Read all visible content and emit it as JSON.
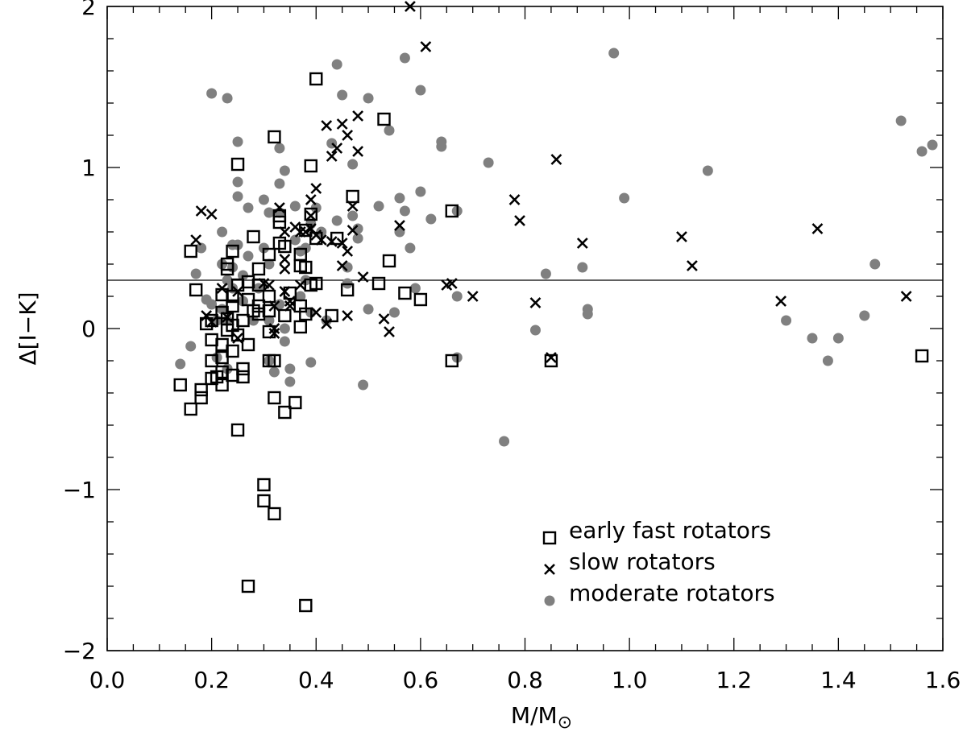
{
  "chart_data": {
    "type": "scatter",
    "xlabel": "M/M",
    "xlabel_symbol": "⊙",
    "ylabel": "Δ[I−K]",
    "xlim": [
      0.0,
      1.6
    ],
    "ylim": [
      -2.0,
      2.0
    ],
    "x_ticks": [
      "0.0",
      "0.2",
      "0.4",
      "0.6",
      "0.8",
      "1.0",
      "1.2",
      "1.4",
      "1.6"
    ],
    "y_ticks": [
      "2",
      "1",
      "0",
      "−1",
      "−2"
    ],
    "reference_line_y": 0.3,
    "legend_position": "bottom-right",
    "colors": {
      "early": "#000000",
      "slow": "#000000",
      "moderate": "#808080"
    },
    "series": [
      {
        "name": "early fast rotators",
        "marker": "square",
        "points": [
          [
            0.14,
            -0.35
          ],
          [
            0.16,
            -0.5
          ],
          [
            0.16,
            0.48
          ],
          [
            0.17,
            0.24
          ],
          [
            0.18,
            -0.43
          ],
          [
            0.18,
            -0.38
          ],
          [
            0.19,
            0.03
          ],
          [
            0.2,
            0.05
          ],
          [
            0.2,
            -0.07
          ],
          [
            0.2,
            -0.2
          ],
          [
            0.2,
            -0.31
          ],
          [
            0.21,
            -0.3
          ],
          [
            0.22,
            0.21
          ],
          [
            0.22,
            0.1
          ],
          [
            0.22,
            -0.1
          ],
          [
            0.22,
            -0.18
          ],
          [
            0.22,
            -0.27
          ],
          [
            0.22,
            -0.35
          ],
          [
            0.23,
            0.37
          ],
          [
            0.23,
            0.4
          ],
          [
            0.23,
            0.06
          ],
          [
            0.23,
            -0.01
          ],
          [
            0.24,
            0.48
          ],
          [
            0.24,
            0.2
          ],
          [
            0.24,
            0.14
          ],
          [
            0.24,
            0.02
          ],
          [
            0.24,
            -0.14
          ],
          [
            0.24,
            -0.29
          ],
          [
            0.25,
            1.02
          ],
          [
            0.25,
            0.27
          ],
          [
            0.25,
            -0.04
          ],
          [
            0.25,
            -0.63
          ],
          [
            0.26,
            0.05
          ],
          [
            0.26,
            -0.25
          ],
          [
            0.26,
            -0.3
          ],
          [
            0.27,
            0.29
          ],
          [
            0.27,
            0.18
          ],
          [
            0.27,
            -0.1
          ],
          [
            0.28,
            0.57
          ],
          [
            0.28,
            0.11
          ],
          [
            0.29,
            0.37
          ],
          [
            0.29,
            0.27
          ],
          [
            0.29,
            0.14
          ],
          [
            0.29,
            0.09
          ],
          [
            0.3,
            -0.97
          ],
          [
            0.3,
            -1.07
          ],
          [
            0.31,
            0.46
          ],
          [
            0.31,
            0.2
          ],
          [
            0.31,
            0.11
          ],
          [
            0.31,
            -0.02
          ],
          [
            0.31,
            -0.2
          ],
          [
            0.32,
            -0.2
          ],
          [
            0.32,
            1.19
          ],
          [
            0.32,
            -0.43
          ],
          [
            0.32,
            -1.15
          ],
          [
            0.33,
            0.7
          ],
          [
            0.33,
            0.66
          ],
          [
            0.33,
            0.53
          ],
          [
            0.34,
            0.51
          ],
          [
            0.34,
            0.08
          ],
          [
            0.34,
            -0.52
          ],
          [
            0.35,
            0.22
          ],
          [
            0.36,
            -0.46
          ],
          [
            0.37,
            0.46
          ],
          [
            0.37,
            0.39
          ],
          [
            0.37,
            0.14
          ],
          [
            0.37,
            0.01
          ],
          [
            0.38,
            0.61
          ],
          [
            0.38,
            0.38
          ],
          [
            0.38,
            0.09
          ],
          [
            0.39,
            1.01
          ],
          [
            0.39,
            0.71
          ],
          [
            0.39,
            0.27
          ],
          [
            0.4,
            1.55
          ],
          [
            0.4,
            0.56
          ],
          [
            0.4,
            0.28
          ],
          [
            0.43,
            0.08
          ],
          [
            0.44,
            0.56
          ],
          [
            0.46,
            0.24
          ],
          [
            0.47,
            0.82
          ],
          [
            0.52,
            0.28
          ],
          [
            0.53,
            1.3
          ],
          [
            0.54,
            0.42
          ],
          [
            0.57,
            0.22
          ],
          [
            0.6,
            0.18
          ],
          [
            0.66,
            0.73
          ],
          [
            0.66,
            -0.2
          ],
          [
            0.85,
            -0.2
          ],
          [
            1.56,
            -0.17
          ],
          [
            0.27,
            -1.6
          ],
          [
            0.38,
            -1.72
          ]
        ]
      },
      {
        "name": "slow rotators",
        "marker": "x",
        "points": [
          [
            0.18,
            0.73
          ],
          [
            0.17,
            0.55
          ],
          [
            0.2,
            0.71
          ],
          [
            0.19,
            0.08
          ],
          [
            0.2,
            0.04
          ],
          [
            0.22,
            0.25
          ],
          [
            0.23,
            0.07
          ],
          [
            0.25,
            0.23
          ],
          [
            0.25,
            -0.06
          ],
          [
            0.3,
            0.28
          ],
          [
            0.31,
            0.27
          ],
          [
            0.32,
            0.14
          ],
          [
            0.32,
            0.0
          ],
          [
            0.32,
            -0.03
          ],
          [
            0.33,
            0.75
          ],
          [
            0.34,
            0.6
          ],
          [
            0.34,
            0.43
          ],
          [
            0.34,
            0.37
          ],
          [
            0.34,
            0.23
          ],
          [
            0.35,
            0.17
          ],
          [
            0.35,
            0.14
          ],
          [
            0.36,
            0.63
          ],
          [
            0.37,
            0.6
          ],
          [
            0.37,
            0.27
          ],
          [
            0.38,
            0.6
          ],
          [
            0.39,
            0.7
          ],
          [
            0.39,
            0.62
          ],
          [
            0.39,
            0.8
          ],
          [
            0.4,
            0.87
          ],
          [
            0.4,
            0.58
          ],
          [
            0.4,
            0.1
          ],
          [
            0.41,
            0.55
          ],
          [
            0.42,
            1.26
          ],
          [
            0.42,
            0.03
          ],
          [
            0.43,
            1.07
          ],
          [
            0.43,
            0.54
          ],
          [
            0.44,
            1.12
          ],
          [
            0.45,
            1.27
          ],
          [
            0.45,
            0.39
          ],
          [
            0.45,
            0.53
          ],
          [
            0.46,
            1.2
          ],
          [
            0.46,
            0.48
          ],
          [
            0.46,
            0.08
          ],
          [
            0.47,
            0.76
          ],
          [
            0.47,
            0.61
          ],
          [
            0.48,
            1.32
          ],
          [
            0.48,
            1.1
          ],
          [
            0.49,
            0.32
          ],
          [
            0.53,
            0.06
          ],
          [
            0.54,
            -0.02
          ],
          [
            0.56,
            0.64
          ],
          [
            0.58,
            2.0
          ],
          [
            0.61,
            1.75
          ],
          [
            0.65,
            0.27
          ],
          [
            0.66,
            0.28
          ],
          [
            0.7,
            0.2
          ],
          [
            0.78,
            0.8
          ],
          [
            0.79,
            0.67
          ],
          [
            0.82,
            0.16
          ],
          [
            0.85,
            -0.18
          ],
          [
            0.86,
            1.05
          ],
          [
            0.91,
            0.53
          ],
          [
            1.1,
            0.57
          ],
          [
            1.12,
            0.39
          ],
          [
            1.29,
            0.17
          ],
          [
            1.36,
            0.62
          ],
          [
            1.53,
            0.2
          ]
        ]
      },
      {
        "name": "moderate rotators",
        "marker": "circle",
        "points": [
          [
            0.14,
            -0.22
          ],
          [
            0.16,
            -0.11
          ],
          [
            0.17,
            0.34
          ],
          [
            0.18,
            0.5
          ],
          [
            0.19,
            0.18
          ],
          [
            0.2,
            1.46
          ],
          [
            0.2,
            0.15
          ],
          [
            0.21,
            0.05
          ],
          [
            0.21,
            -0.18
          ],
          [
            0.22,
            0.6
          ],
          [
            0.22,
            0.4
          ],
          [
            0.22,
            0.12
          ],
          [
            0.23,
            1.43
          ],
          [
            0.23,
            0.3
          ],
          [
            0.23,
            0.05
          ],
          [
            0.23,
            -0.25
          ],
          [
            0.24,
            0.52
          ],
          [
            0.24,
            0.38
          ],
          [
            0.24,
            0.25
          ],
          [
            0.25,
            1.16
          ],
          [
            0.25,
            0.91
          ],
          [
            0.25,
            0.82
          ],
          [
            0.25,
            0.52
          ],
          [
            0.26,
            0.33
          ],
          [
            0.26,
            0.17
          ],
          [
            0.27,
            0.75
          ],
          [
            0.27,
            0.45
          ],
          [
            0.28,
            0.05
          ],
          [
            0.29,
            0.25
          ],
          [
            0.3,
            0.8
          ],
          [
            0.3,
            0.5
          ],
          [
            0.31,
            0.72
          ],
          [
            0.31,
            0.4
          ],
          [
            0.31,
            0.05
          ],
          [
            0.31,
            -0.2
          ],
          [
            0.32,
            -0.27
          ],
          [
            0.33,
            1.12
          ],
          [
            0.33,
            0.9
          ],
          [
            0.33,
            0.72
          ],
          [
            0.33,
            0.15
          ],
          [
            0.34,
            0.98
          ],
          [
            0.34,
            0.0
          ],
          [
            0.34,
            -0.08
          ],
          [
            0.35,
            -0.25
          ],
          [
            0.35,
            -0.33
          ],
          [
            0.36,
            0.76
          ],
          [
            0.36,
            0.55
          ],
          [
            0.37,
            0.48
          ],
          [
            0.37,
            0.2
          ],
          [
            0.38,
            0.5
          ],
          [
            0.38,
            0.3
          ],
          [
            0.39,
            0.65
          ],
          [
            0.39,
            0.1
          ],
          [
            0.39,
            -0.21
          ],
          [
            0.4,
            0.75
          ],
          [
            0.41,
            0.6
          ],
          [
            0.42,
            0.05
          ],
          [
            0.43,
            1.15
          ],
          [
            0.44,
            1.64
          ],
          [
            0.44,
            0.67
          ],
          [
            0.45,
            1.45
          ],
          [
            0.46,
            0.38
          ],
          [
            0.46,
            0.28
          ],
          [
            0.47,
            1.02
          ],
          [
            0.47,
            0.7
          ],
          [
            0.48,
            0.62
          ],
          [
            0.48,
            0.56
          ],
          [
            0.49,
            -0.35
          ],
          [
            0.5,
            1.43
          ],
          [
            0.5,
            0.12
          ],
          [
            0.52,
            0.76
          ],
          [
            0.54,
            1.23
          ],
          [
            0.55,
            0.1
          ],
          [
            0.56,
            0.81
          ],
          [
            0.56,
            0.6
          ],
          [
            0.57,
            0.73
          ],
          [
            0.57,
            1.68
          ],
          [
            0.58,
            0.5
          ],
          [
            0.59,
            0.25
          ],
          [
            0.6,
            1.48
          ],
          [
            0.6,
            0.85
          ],
          [
            0.62,
            0.68
          ],
          [
            0.64,
            1.13
          ],
          [
            0.64,
            1.16
          ],
          [
            0.67,
            0.73
          ],
          [
            0.67,
            0.2
          ],
          [
            0.67,
            -0.18
          ],
          [
            0.73,
            1.03
          ],
          [
            0.76,
            -0.7
          ],
          [
            0.82,
            -0.01
          ],
          [
            0.84,
            0.34
          ],
          [
            0.91,
            0.38
          ],
          [
            0.92,
            0.12
          ],
          [
            0.92,
            0.09
          ],
          [
            0.97,
            1.71
          ],
          [
            0.99,
            0.81
          ],
          [
            1.15,
            0.98
          ],
          [
            1.3,
            0.05
          ],
          [
            1.35,
            -0.06
          ],
          [
            1.38,
            -0.2
          ],
          [
            1.4,
            -0.06
          ],
          [
            1.45,
            0.08
          ],
          [
            1.47,
            0.4
          ],
          [
            1.52,
            1.29
          ],
          [
            1.56,
            1.1
          ],
          [
            1.58,
            1.14
          ]
        ]
      }
    ]
  }
}
